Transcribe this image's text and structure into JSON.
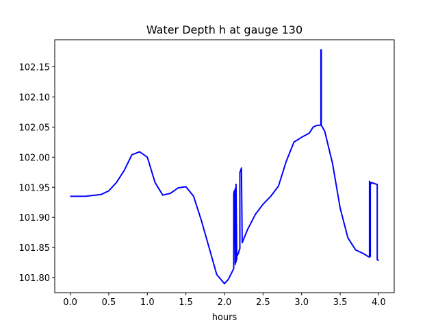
{
  "chart_data": {
    "type": "line",
    "title": "Water Depth h at gauge 130",
    "xlabel": "hours",
    "ylabel": "",
    "xlim": [
      -0.2,
      4.2
    ],
    "ylim": [
      101.775,
      102.195
    ],
    "xticks": [
      0.0,
      0.5,
      1.0,
      1.5,
      2.0,
      2.5,
      3.0,
      3.5,
      4.0
    ],
    "xtick_labels": [
      "0.0",
      "0.5",
      "1.0",
      "1.5",
      "2.0",
      "2.5",
      "3.0",
      "3.5",
      "4.0"
    ],
    "yticks": [
      101.8,
      101.85,
      101.9,
      101.95,
      102.0,
      102.05,
      102.1,
      102.15
    ],
    "ytick_labels": [
      "101.80",
      "101.85",
      "101.90",
      "101.95",
      "102.00",
      "102.05",
      "102.10",
      "102.15"
    ],
    "grid": false,
    "series": [
      {
        "color": "#0000ff",
        "x": [
          0.0,
          0.2,
          0.4,
          0.5,
          0.6,
          0.7,
          0.8,
          0.9,
          1.0,
          1.1,
          1.2,
          1.3,
          1.4,
          1.5,
          1.6,
          1.7,
          1.8,
          1.9,
          2.0,
          2.05,
          2.1,
          2.12,
          2.12,
          2.13,
          2.14,
          2.14,
          2.15,
          2.15,
          2.16,
          2.16,
          2.17,
          2.18,
          2.19,
          2.2,
          2.2,
          2.21,
          2.22,
          2.23,
          2.23,
          2.3,
          2.4,
          2.5,
          2.6,
          2.7,
          2.8,
          2.9,
          3.0,
          3.1,
          3.15,
          3.2,
          3.25,
          3.25,
          3.255,
          3.255,
          3.26,
          3.3,
          3.4,
          3.5,
          3.6,
          3.7,
          3.8,
          3.85,
          3.88,
          3.88,
          3.885,
          3.89,
          3.89,
          3.9,
          3.9,
          3.95,
          3.97,
          3.98,
          3.98,
          4.0
        ],
        "y": [
          101.935,
          101.935,
          101.938,
          101.944,
          101.958,
          101.978,
          102.004,
          102.009,
          102.0,
          101.958,
          101.937,
          101.94,
          101.949,
          101.951,
          101.935,
          101.895,
          101.85,
          101.805,
          101.79,
          101.797,
          101.81,
          101.815,
          101.94,
          101.945,
          101.822,
          101.948,
          101.826,
          101.955,
          101.83,
          101.835,
          101.838,
          101.84,
          101.845,
          101.848,
          101.975,
          101.978,
          101.982,
          101.858,
          101.858,
          101.88,
          101.905,
          101.922,
          101.935,
          101.952,
          101.993,
          102.025,
          102.033,
          102.04,
          102.05,
          102.053,
          102.053,
          102.178,
          102.178,
          102.053,
          102.052,
          102.043,
          101.99,
          101.915,
          101.866,
          101.846,
          101.84,
          101.836,
          101.834,
          101.96,
          101.958,
          101.835,
          101.957,
          101.956,
          101.958,
          101.956,
          101.955,
          101.955,
          101.83,
          101.828
        ]
      }
    ]
  }
}
